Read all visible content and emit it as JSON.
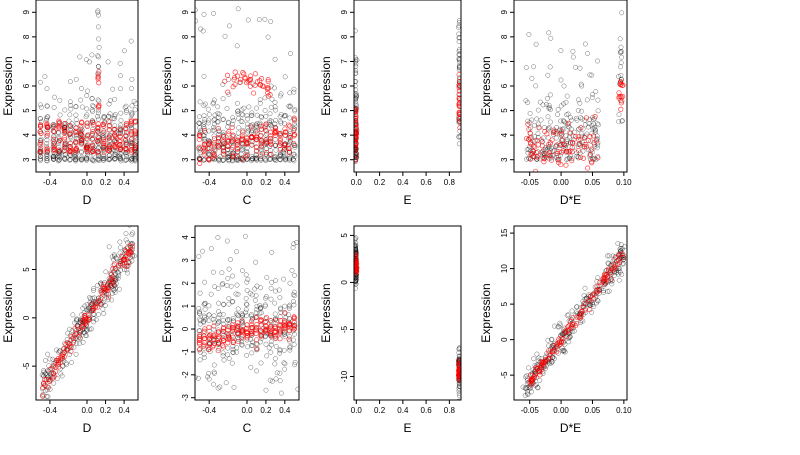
{
  "colors": {
    "background": "#ffffff",
    "observed": "#000000",
    "fitted": "#ff0000",
    "frame": "#000000"
  },
  "chart_data": [
    {
      "type": "scatter",
      "xlabel": "D",
      "ylabel": "Expression",
      "xlim": [
        -0.55,
        0.55
      ],
      "ylim": [
        2.5,
        9.5
      ],
      "xticks": [
        "-0.4",
        "0.0",
        "0.2",
        "0.4"
      ],
      "yticks": [
        "3",
        "4",
        "5",
        "6",
        "7",
        "8",
        "9"
      ],
      "pattern": "D-top",
      "grid": false,
      "legend": "none"
    },
    {
      "type": "scatter",
      "xlabel": "C",
      "ylabel": "Expression",
      "xlim": [
        -0.55,
        0.55
      ],
      "ylim": [
        2.5,
        9.5
      ],
      "xticks": [
        "-0.4",
        "0.0",
        "0.2",
        "0.4"
      ],
      "yticks": [
        "3",
        "4",
        "5",
        "6",
        "7",
        "8",
        "9"
      ],
      "pattern": "C-top",
      "grid": false,
      "legend": "none"
    },
    {
      "type": "scatter",
      "xlabel": "E",
      "ylabel": "Expression",
      "xlim": [
        -0.02,
        0.9
      ],
      "ylim": [
        2.5,
        9.5
      ],
      "xticks": [
        "0.0",
        "0.2",
        "0.4",
        "0.6",
        "0.8"
      ],
      "yticks": [
        "3",
        "4",
        "5",
        "6",
        "7",
        "8",
        "9"
      ],
      "pattern": "E-top",
      "grid": false,
      "legend": "none"
    },
    {
      "type": "scatter",
      "xlabel": "D*E",
      "ylabel": "Expression",
      "xlim": [
        -0.075,
        0.105
      ],
      "ylim": [
        2.5,
        9.5
      ],
      "xticks": [
        "-0.05",
        "0.00",
        "0.05",
        "0.10"
      ],
      "yticks": [
        "3",
        "4",
        "5",
        "6",
        "7",
        "8",
        "9"
      ],
      "pattern": "DE-top",
      "grid": false,
      "legend": "none"
    },
    {
      "type": "scatter",
      "xlabel": "D",
      "ylabel": "Expression",
      "xlim": [
        -0.55,
        0.55
      ],
      "ylim": [
        -8.5,
        9.5
      ],
      "xticks": [
        "-0.4",
        "0.0",
        "0.2",
        "0.4"
      ],
      "yticks": [
        "-5",
        "0",
        "5"
      ],
      "pattern": "D-bot",
      "grid": false,
      "legend": "none"
    },
    {
      "type": "scatter",
      "xlabel": "C",
      "ylabel": "Expression",
      "xlim": [
        -0.55,
        0.55
      ],
      "ylim": [
        -3.1,
        4.5
      ],
      "xticks": [
        "-0.4",
        "0.0",
        "0.2",
        "0.4"
      ],
      "yticks": [
        "-3",
        "-2",
        "-1",
        "0",
        "1",
        "2",
        "3",
        "4"
      ],
      "pattern": "C-bot",
      "grid": false,
      "legend": "none"
    },
    {
      "type": "scatter",
      "xlabel": "E",
      "ylabel": "Expression",
      "xlim": [
        -0.02,
        0.9
      ],
      "ylim": [
        -12.5,
        6.0
      ],
      "xticks": [
        "0.0",
        "0.2",
        "0.4",
        "0.6",
        "0.8"
      ],
      "yticks": [
        "-10",
        "-5",
        "0",
        "5"
      ],
      "pattern": "E-bot",
      "grid": false,
      "legend": "none"
    },
    {
      "type": "scatter",
      "xlabel": "D*E",
      "ylabel": "Expression",
      "xlim": [
        -0.075,
        0.105
      ],
      "ylim": [
        -8.5,
        16.0
      ],
      "xticks": [
        "-0.05",
        "0.00",
        "0.05",
        "0.10"
      ],
      "yticks": [
        "-5",
        "0",
        "5",
        "10",
        "15"
      ],
      "pattern": "DE-bot",
      "grid": false,
      "legend": "none"
    }
  ]
}
